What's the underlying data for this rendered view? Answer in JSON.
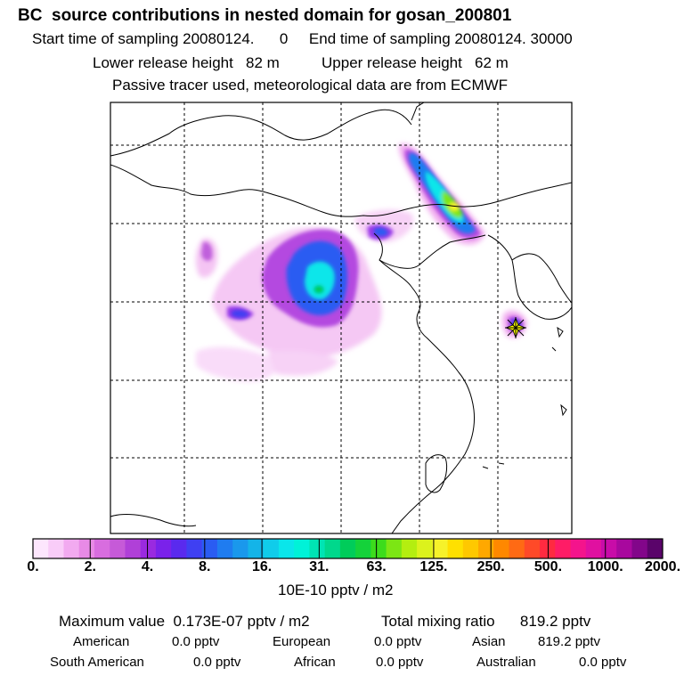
{
  "header": {
    "title": "BC  source contributions in nested domain for gosan_200801",
    "sampling_start_label": "Start time of sampling",
    "sampling_start_value": "20080124.      0",
    "sampling_end_label": "End time of sampling",
    "sampling_end_value": "20080124. 30000",
    "lower_release_label": "Lower release height",
    "lower_release_value": "82 m",
    "upper_release_label": "Upper release height",
    "upper_release_value": "62 m",
    "tracer_note": "Passive tracer used, meteorological data are from ECMWF"
  },
  "colors": {
    "scale": [
      "#fde6fd",
      "#f9ccf8",
      "#f2aaf0",
      "#e88ae6",
      "#d86ddf",
      "#c65ad8",
      "#b040d8",
      "#9a2ae0",
      "#7a22ea",
      "#5a2aee",
      "#3f40f2",
      "#2a5cf2",
      "#1f7cf0",
      "#1a98ec",
      "#14b4e8",
      "#10ccea",
      "#0ae6ea",
      "#00f2d8",
      "#00e4b4",
      "#00d88c",
      "#00cc5a",
      "#14d23a",
      "#3cdc1c",
      "#7ce614",
      "#b4ee10",
      "#dcf21c",
      "#f6f22a",
      "#ffe000",
      "#ffc800",
      "#ffa800",
      "#ff8800",
      "#ff6a14",
      "#ff4a28",
      "#ff2a40",
      "#ff1c66",
      "#f4148c",
      "#e010a0",
      "#c80ca8",
      "#a8089e",
      "#82068a",
      "#5a046a"
    ],
    "receptor_marker": "#ffff00"
  },
  "colorbar": {
    "tick_labels": [
      "0.",
      "2.",
      "4.",
      "8.",
      "16.",
      "31.",
      "63.",
      "125.",
      "250.",
      "500.",
      "1000.",
      "2000."
    ],
    "unit": "10E-10 pptv / m2"
  },
  "stats": {
    "max_label": "Maximum value",
    "max_value": "0.173E-07 pptv / m2",
    "total_label": "Total mixing ratio",
    "total_value": "819.2 pptv"
  },
  "sources": [
    {
      "name": "American",
      "value": "0.0 pptv"
    },
    {
      "name": "European",
      "value": "0.0 pptv"
    },
    {
      "name": "Asian",
      "value": "819.2 pptv"
    },
    {
      "name": "South American",
      "value": "0.0 pptv"
    },
    {
      "name": "African",
      "value": "0.0 pptv"
    },
    {
      "name": "Australian",
      "value": "0.0 pptv"
    }
  ]
}
